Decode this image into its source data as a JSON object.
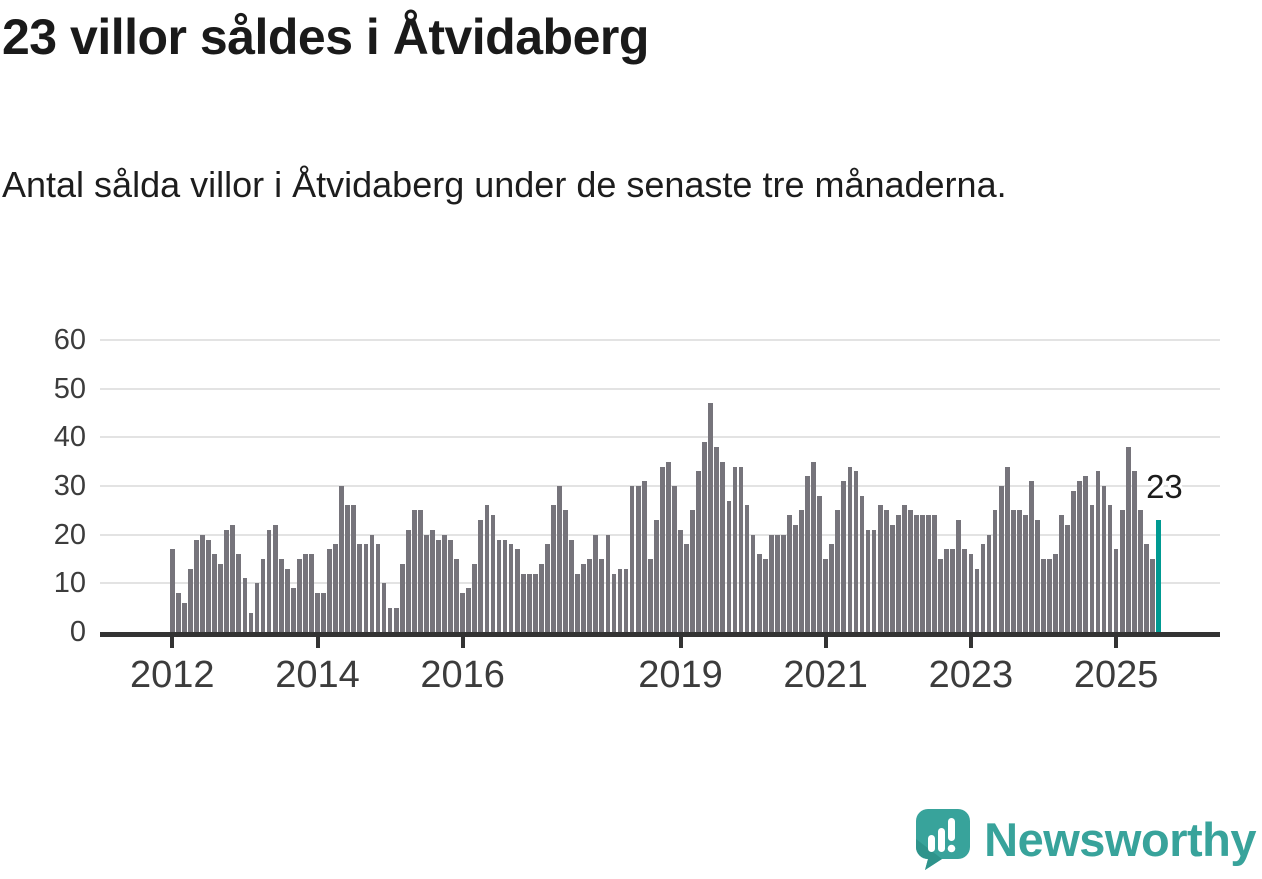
{
  "title": "23 villor såldes i Åtvidaberg",
  "subtitle": "Antal sålda villor i Åtvidaberg under de senaste tre månaderna.",
  "annotation_label": "23",
  "branding": {
    "name": "Newsworthy",
    "icon": "speech-bubble-bar-chart-icon"
  },
  "colors": {
    "bar": "#76747b",
    "highlight": "#009a92",
    "brand_teal": "#38a39b",
    "grid": "#e3e3e3",
    "axis": "#333333",
    "title_text": "#1a1a1a",
    "axis_text": "#3c3c3c"
  },
  "chart_data": {
    "type": "bar",
    "title": "23 villor såldes i Åtvidaberg",
    "subtitle": "Antal sålda villor i Åtvidaberg under de senaste tre månaderna.",
    "unit": "sålda villor per 3-månadersperiod",
    "x_start": "2012-01",
    "x_end": "2025-08",
    "values": [
      17,
      8,
      6,
      13,
      19,
      20,
      19,
      16,
      14,
      21,
      22,
      16,
      11,
      4,
      10,
      15,
      21,
      22,
      15,
      13,
      9,
      15,
      16,
      16,
      8,
      8,
      17,
      18,
      30,
      26,
      26,
      18,
      18,
      20,
      18,
      10,
      5,
      5,
      14,
      21,
      25,
      25,
      20,
      21,
      19,
      20,
      19,
      15,
      8,
      9,
      14,
      23,
      26,
      24,
      19,
      19,
      18,
      17,
      12,
      12,
      12,
      14,
      18,
      26,
      30,
      25,
      19,
      12,
      14,
      15,
      20,
      15,
      20,
      12,
      13,
      13,
      30,
      30,
      31,
      15,
      23,
      34,
      35,
      30,
      21,
      18,
      25,
      33,
      39,
      47,
      38,
      35,
      27,
      34,
      34,
      26,
      20,
      16,
      15,
      20,
      20,
      20,
      24,
      22,
      25,
      32,
      35,
      28,
      15,
      18,
      25,
      31,
      34,
      33,
      28,
      21,
      21,
      26,
      25,
      22,
      24,
      26,
      25,
      24,
      24,
      24,
      24,
      15,
      17,
      17,
      23,
      17,
      16,
      13,
      18,
      20,
      25,
      30,
      34,
      25,
      25,
      24,
      31,
      23,
      15,
      15,
      16,
      24,
      22,
      29,
      31,
      32,
      26,
      33,
      30,
      26,
      17,
      25,
      38,
      33,
      25,
      18,
      15,
      23
    ],
    "highlight": {
      "index": 163,
      "value": 23,
      "label": "23",
      "color": "#009a92"
    },
    "x_tick_labels": [
      "2012",
      "2014",
      "2016",
      "2019",
      "2021",
      "2023",
      "2025"
    ],
    "x_tick_month_indices": [
      0,
      24,
      48,
      84,
      108,
      132,
      156
    ],
    "y_ticks": [
      0,
      10,
      20,
      30,
      40,
      50,
      60
    ],
    "ylim": [
      0,
      60
    ],
    "grid": true,
    "legend": false
  }
}
